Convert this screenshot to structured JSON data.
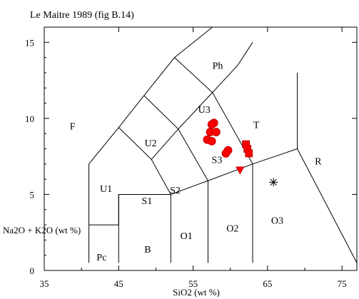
{
  "chart_data": {
    "type": "scatter",
    "title": "Le Maitre 1989 (fig B.14)",
    "xlabel": "SiO2  (wt %)",
    "ylabel": "Na2O + K2O  (wt %)",
    "xlim": [
      35,
      77
    ],
    "ylim": [
      0,
      16
    ],
    "x_ticks": [
      35,
      45,
      55,
      65,
      75
    ],
    "y_ticks": [
      0,
      5,
      10,
      15
    ],
    "grid": false,
    "field_boundaries": [
      [
        [
          41,
          0.5
        ],
        [
          41,
          7
        ],
        [
          45,
          9.4
        ],
        [
          48.4,
          11.5
        ],
        [
          52.5,
          14
        ],
        [
          57.6,
          16
        ]
      ],
      [
        [
          41,
          3
        ],
        [
          45,
          3
        ],
        [
          45,
          5
        ],
        [
          52,
          5
        ],
        [
          57,
          5.9
        ],
        [
          63,
          7
        ],
        [
          69,
          8
        ],
        [
          77,
          0.5
        ]
      ],
      [
        [
          45,
          0.5
        ],
        [
          45,
          5
        ]
      ],
      [
        [
          52,
          0.5
        ],
        [
          52,
          5
        ],
        [
          49.4,
          7.3
        ],
        [
          45,
          9.4
        ]
      ],
      [
        [
          57,
          0.5
        ],
        [
          57,
          5.9
        ],
        [
          53,
          9.3
        ],
        [
          48.4,
          11.5
        ]
      ],
      [
        [
          63,
          0.5
        ],
        [
          63,
          7
        ],
        [
          57.6,
          11.7
        ],
        [
          52.5,
          14
        ]
      ],
      [
        [
          57.6,
          11.7
        ],
        [
          61,
          13.5
        ],
        [
          63,
          15
        ]
      ],
      [
        [
          49.4,
          7.3
        ],
        [
          53,
          9.3
        ],
        [
          57.6,
          11.7
        ]
      ],
      [
        [
          69,
          8
        ],
        [
          69,
          13
        ]
      ]
    ],
    "field_labels": [
      {
        "text": "Ph",
        "x": 58.3,
        "y": 13.5
      },
      {
        "text": "U3",
        "x": 56.5,
        "y": 10.6
      },
      {
        "text": "T",
        "x": 63.5,
        "y": 9.6
      },
      {
        "text": "F",
        "x": 38.8,
        "y": 9.5
      },
      {
        "text": "U2",
        "x": 49.3,
        "y": 8.4
      },
      {
        "text": "S3",
        "x": 58.2,
        "y": 7.3
      },
      {
        "text": "R",
        "x": 71.8,
        "y": 7.2
      },
      {
        "text": "U1",
        "x": 43.3,
        "y": 5.4
      },
      {
        "text": "S1",
        "x": 48.8,
        "y": 4.6
      },
      {
        "text": "S2",
        "x": 52.6,
        "y": 5.3
      },
      {
        "text": "O3",
        "x": 66.3,
        "y": 3.3
      },
      {
        "text": "O2",
        "x": 60.3,
        "y": 2.8
      },
      {
        "text": "O1",
        "x": 54.1,
        "y": 2.3
      },
      {
        "text": "B",
        "x": 48.9,
        "y": 1.4
      },
      {
        "text": "Pc",
        "x": 42.7,
        "y": 0.9
      }
    ],
    "series": [
      {
        "marker": "circle",
        "color": "#ff0000",
        "points": [
          [
            57.8,
            9.7
          ],
          [
            57.5,
            9.6
          ],
          [
            57.3,
            9.1
          ],
          [
            58.1,
            9.1
          ],
          [
            56.9,
            8.6
          ],
          [
            57.5,
            8.5
          ],
          [
            59.7,
            7.9
          ],
          [
            59.4,
            7.7
          ]
        ]
      },
      {
        "marker": "square",
        "color": "#ff0000",
        "points": [
          [
            62.1,
            8.3
          ],
          [
            62.3,
            8.0
          ],
          [
            62.5,
            7.7
          ]
        ]
      },
      {
        "marker": "triangle-down",
        "color": "#ff0000",
        "points": [
          [
            61.3,
            6.6
          ]
        ]
      },
      {
        "marker": "asterisk",
        "color": "#000000",
        "points": [
          [
            65.8,
            5.8
          ]
        ]
      }
    ]
  }
}
